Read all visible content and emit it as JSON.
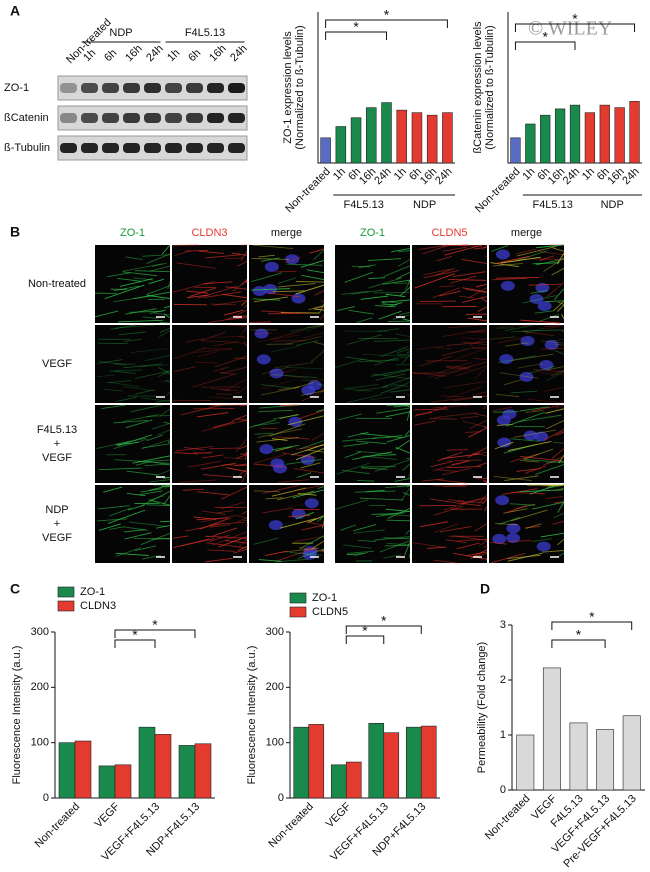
{
  "panel_labels": [
    "A",
    "B",
    "C",
    "D"
  ],
  "watermark": "© WILEY",
  "blot": {
    "groups": [
      "Non-treated",
      "NDP",
      "F4L5.13"
    ],
    "times": [
      "1h",
      "6h",
      "16h",
      "24h",
      "1h",
      "6h",
      "16h",
      "24h"
    ],
    "rows": [
      "ZO-1",
      "ßCatenin",
      "ß-Tubulin"
    ]
  },
  "micrographs": {
    "columns": [
      "ZO-1",
      "CLDN3",
      "merge",
      "ZO-1",
      "CLDN5",
      "merge"
    ],
    "rows": [
      [
        "Non-treated"
      ],
      [
        "VEGF"
      ],
      [
        "F4L5.13",
        "+",
        "VEGF"
      ],
      [
        "NDP",
        "+",
        "VEGF"
      ]
    ]
  },
  "chart_data": [
    {
      "type": "bar",
      "ylabel": [
        "ZO-1 expression levels",
        "(Normalized to ß-Tubulin)"
      ],
      "categories": [
        "Non-treated",
        "1h",
        "6h",
        "16h",
        "24h",
        "1h",
        "6h",
        "16h",
        "24h"
      ],
      "groups": [
        "F4L5.13",
        "NDP"
      ],
      "values": [
        1,
        1.45,
        1.8,
        2.2,
        2.4,
        2.1,
        2.0,
        1.9,
        2.0
      ],
      "colors": [
        "#5a6bc4",
        "#1a8a4c",
        "#1a8a4c",
        "#1a8a4c",
        "#1a8a4c",
        "#e33b30",
        "#e33b30",
        "#e33b30",
        "#e33b30"
      ],
      "ylim": [
        0,
        6
      ],
      "annotations": [
        "*",
        "*"
      ]
    },
    {
      "type": "bar",
      "ylabel": [
        "ßCatenin expression levels",
        "(Normalized to ß-Tubulin)"
      ],
      "categories": [
        "Non-treated",
        "1h",
        "6h",
        "16h",
        "24h",
        "1h",
        "6h",
        "16h",
        "24h"
      ],
      "groups": [
        "F4L5.13",
        "NDP"
      ],
      "values": [
        1,
        1.55,
        1.9,
        2.15,
        2.3,
        2.0,
        2.3,
        2.2,
        2.45
      ],
      "colors": [
        "#5a6bc4",
        "#1a8a4c",
        "#1a8a4c",
        "#1a8a4c",
        "#1a8a4c",
        "#e33b30",
        "#e33b30",
        "#e33b30",
        "#e33b30"
      ],
      "ylim": [
        0,
        6
      ],
      "annotations": [
        "*",
        "*"
      ]
    },
    {
      "type": "bar",
      "ylabel": "Fluorescence Intensity (a.u.)",
      "categories": [
        "Non-treated",
        "VEGF",
        "VEGF+F4L5.13",
        "NDP+F4L5.13"
      ],
      "series": [
        {
          "name": "ZO-1",
          "color": "#1a8a4c",
          "values": [
            100,
            58,
            128,
            95
          ]
        },
        {
          "name": "CLDN3",
          "color": "#e33b30",
          "values": [
            103,
            60,
            115,
            98
          ]
        }
      ],
      "ylim": [
        0,
        300
      ],
      "yticks": [
        0,
        100,
        200,
        300
      ],
      "annotations": [
        "*",
        "*"
      ]
    },
    {
      "type": "bar",
      "ylabel": "Fluorescence Intensity (a.u.)",
      "categories": [
        "Non-treated",
        "VEGF",
        "VEGF+F4L5.13",
        "NDP+F4L5.13"
      ],
      "series": [
        {
          "name": "ZO-1",
          "color": "#1a8a4c",
          "values": [
            128,
            60,
            135,
            128
          ]
        },
        {
          "name": "CLDN5",
          "color": "#e33b30",
          "values": [
            133,
            65,
            118,
            130
          ]
        }
      ],
      "ylim": [
        0,
        300
      ],
      "yticks": [
        0,
        100,
        200,
        300
      ],
      "annotations": [
        "*",
        "*"
      ]
    },
    {
      "type": "bar",
      "ylabel": "Permeability (Fold change)",
      "categories": [
        "Non-treated",
        "VEGF",
        "F4L5.13",
        "VEGF+F4L5.13",
        "Pre-VEGF+F4L5.13"
      ],
      "values": [
        1,
        2.22,
        1.22,
        1.1,
        1.35
      ],
      "colors": [
        "#d9d9d9",
        "#d9d9d9",
        "#d9d9d9",
        "#d9d9d9",
        "#d9d9d9"
      ],
      "ylim": [
        0,
        3
      ],
      "yticks": [
        0,
        1,
        2,
        3
      ],
      "annotations": [
        "*",
        "*"
      ]
    }
  ]
}
